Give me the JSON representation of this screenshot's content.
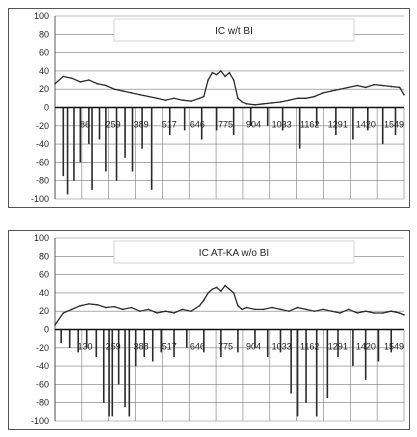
{
  "chart_data": [
    {
      "type": "line",
      "title": "IC w/t BI",
      "ylim": [
        -100,
        100
      ],
      "yticks": [
        100,
        80,
        60,
        40,
        20,
        0,
        -20,
        -40,
        -60,
        -80,
        -100
      ],
      "xticks": [
        "86",
        "259",
        "389",
        "517",
        "646",
        "775",
        "904",
        "1033",
        "1162",
        "1291",
        "1420",
        "1549"
      ],
      "x_range": [
        1,
        1640
      ],
      "grid": true,
      "legend": "none",
      "colors": {
        "line": "#2a2a2a",
        "grid": "#7a7a7a",
        "panel_border": "#555555"
      },
      "series": [
        {
          "x": [
            1,
            40,
            80,
            120,
            160,
            200,
            240,
            280,
            320,
            360,
            400,
            440,
            480,
            520,
            560,
            600,
            640,
            680,
            700,
            720,
            740,
            760,
            780,
            800,
            820,
            840,
            860,
            880,
            900,
            940,
            980,
            1020,
            1060,
            1100,
            1140,
            1180,
            1220,
            1260,
            1300,
            1340,
            1380,
            1420,
            1460,
            1500,
            1540,
            1580,
            1620,
            1640
          ],
          "values": [
            26,
            34,
            32,
            28,
            30,
            26,
            24,
            20,
            18,
            16,
            14,
            12,
            10,
            8,
            10,
            8,
            7,
            10,
            12,
            30,
            38,
            36,
            40,
            34,
            38,
            30,
            10,
            6,
            4,
            3,
            4,
            5,
            6,
            8,
            10,
            10,
            12,
            16,
            18,
            20,
            22,
            24,
            22,
            25,
            24,
            23,
            22,
            14
          ]
        }
      ],
      "dips": [
        {
          "x": 40,
          "y": -75
        },
        {
          "x": 60,
          "y": -95
        },
        {
          "x": 90,
          "y": -80
        },
        {
          "x": 120,
          "y": -60
        },
        {
          "x": 160,
          "y": -40
        },
        {
          "x": 175,
          "y": -90
        },
        {
          "x": 210,
          "y": -35
        },
        {
          "x": 240,
          "y": -70
        },
        {
          "x": 290,
          "y": -80
        },
        {
          "x": 330,
          "y": -55
        },
        {
          "x": 365,
          "y": -70
        },
        {
          "x": 410,
          "y": -45
        },
        {
          "x": 455,
          "y": -90
        },
        {
          "x": 540,
          "y": -30
        },
        {
          "x": 610,
          "y": -25
        },
        {
          "x": 690,
          "y": -35
        },
        {
          "x": 760,
          "y": -25
        },
        {
          "x": 840,
          "y": -30
        },
        {
          "x": 920,
          "y": -20
        },
        {
          "x": 1000,
          "y": -20
        },
        {
          "x": 1070,
          "y": -25
        },
        {
          "x": 1150,
          "y": -45
        },
        {
          "x": 1230,
          "y": -20
        },
        {
          "x": 1320,
          "y": -30
        },
        {
          "x": 1400,
          "y": -35
        },
        {
          "x": 1470,
          "y": -25
        },
        {
          "x": 1540,
          "y": -40
        },
        {
          "x": 1600,
          "y": -30
        }
      ]
    },
    {
      "type": "line",
      "title": "IC AT-KA w/o BI",
      "ylim": [
        -100,
        100
      ],
      "yticks": [
        100,
        80,
        60,
        40,
        20,
        0,
        -20,
        -40,
        -60,
        -80,
        -100
      ],
      "xticks": [
        "130",
        "259",
        "388",
        "517",
        "646",
        "775",
        "904",
        "1033",
        "1162",
        "1291",
        "1420",
        "1549"
      ],
      "x_range": [
        1,
        1640
      ],
      "grid": true,
      "legend": "none",
      "colors": {
        "line": "#2a2a2a",
        "grid": "#7a7a7a",
        "panel_border": "#555555"
      },
      "series": [
        {
          "x": [
            1,
            40,
            80,
            120,
            160,
            200,
            240,
            280,
            320,
            360,
            400,
            440,
            480,
            520,
            560,
            600,
            640,
            680,
            700,
            720,
            740,
            760,
            780,
            800,
            820,
            840,
            860,
            880,
            900,
            940,
            980,
            1020,
            1060,
            1100,
            1140,
            1180,
            1220,
            1260,
            1300,
            1340,
            1380,
            1420,
            1460,
            1500,
            1540,
            1580,
            1620,
            1640
          ],
          "values": [
            5,
            18,
            22,
            26,
            28,
            27,
            24,
            25,
            22,
            24,
            20,
            22,
            18,
            20,
            18,
            22,
            20,
            26,
            32,
            40,
            44,
            46,
            42,
            48,
            44,
            40,
            26,
            22,
            24,
            22,
            22,
            24,
            22,
            20,
            24,
            22,
            20,
            22,
            20,
            18,
            22,
            18,
            20,
            18,
            18,
            20,
            18,
            16
          ]
        }
      ],
      "dips": [
        {
          "x": 30,
          "y": -15
        },
        {
          "x": 70,
          "y": -20
        },
        {
          "x": 110,
          "y": -25
        },
        {
          "x": 150,
          "y": -20
        },
        {
          "x": 195,
          "y": -30
        },
        {
          "x": 230,
          "y": -80
        },
        {
          "x": 255,
          "y": -95
        },
        {
          "x": 270,
          "y": -95
        },
        {
          "x": 300,
          "y": -60
        },
        {
          "x": 330,
          "y": -85
        },
        {
          "x": 350,
          "y": -95
        },
        {
          "x": 380,
          "y": -40
        },
        {
          "x": 420,
          "y": -30
        },
        {
          "x": 460,
          "y": -35
        },
        {
          "x": 500,
          "y": -25
        },
        {
          "x": 560,
          "y": -30
        },
        {
          "x": 620,
          "y": -20
        },
        {
          "x": 700,
          "y": -25
        },
        {
          "x": 780,
          "y": -30
        },
        {
          "x": 860,
          "y": -25
        },
        {
          "x": 940,
          "y": -20
        },
        {
          "x": 1000,
          "y": -30
        },
        {
          "x": 1060,
          "y": -25
        },
        {
          "x": 1110,
          "y": -70
        },
        {
          "x": 1140,
          "y": -95
        },
        {
          "x": 1180,
          "y": -80
        },
        {
          "x": 1230,
          "y": -95
        },
        {
          "x": 1280,
          "y": -75
        },
        {
          "x": 1330,
          "y": -30
        },
        {
          "x": 1400,
          "y": -40
        },
        {
          "x": 1460,
          "y": -55
        },
        {
          "x": 1520,
          "y": -35
        },
        {
          "x": 1580,
          "y": -25
        }
      ]
    }
  ]
}
